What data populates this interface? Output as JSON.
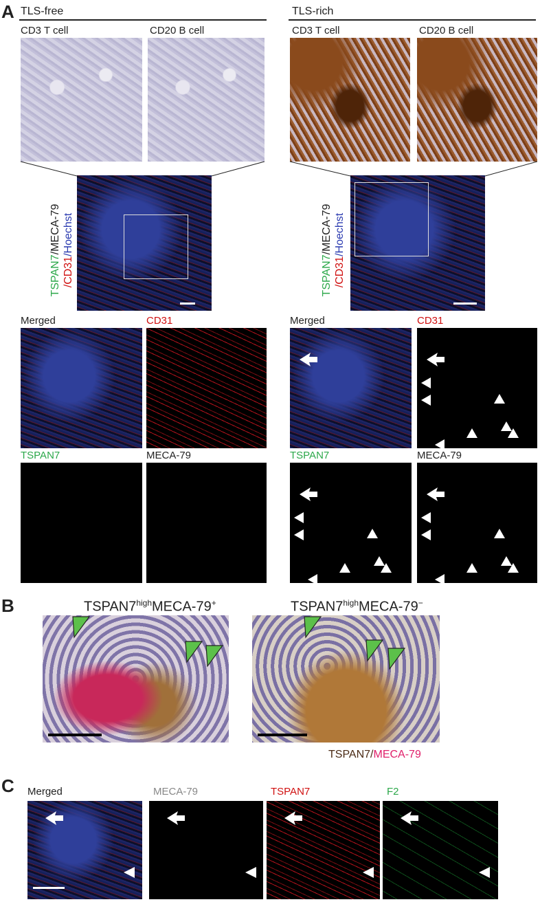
{
  "panel_a": {
    "letter": "A",
    "groups": [
      {
        "title": "TLS-free",
        "ihc_labels": [
          "CD3 T cell",
          "CD20 B cell"
        ],
        "if_label": [
          "TSPAN7",
          "/MECA-79",
          "/CD31",
          "/Hoechst"
        ],
        "channels": [
          "Merged",
          "CD31",
          "TSPAN7",
          "MECA-79"
        ]
      },
      {
        "title": "TLS-rich",
        "ihc_labels": [
          "CD3 T cell",
          "CD20 B cell"
        ],
        "if_label": [
          "TSPAN7",
          "/MECA-79",
          "/CD31",
          "/Hoechst"
        ],
        "channels": [
          "Merged",
          "CD31",
          "TSPAN7",
          "MECA-79"
        ]
      }
    ]
  },
  "panel_b": {
    "letter": "B",
    "titles": [
      [
        "TSPAN7",
        "high",
        "MECA-79",
        "+"
      ],
      [
        "TSPAN7",
        "high",
        "MECA-79",
        "−"
      ]
    ],
    "legend": [
      "TSPAN7/",
      "MECA-79"
    ]
  },
  "panel_c": {
    "letter": "C",
    "channels": [
      "Merged",
      "MECA-79",
      "TSPAN7",
      "F2"
    ]
  }
}
